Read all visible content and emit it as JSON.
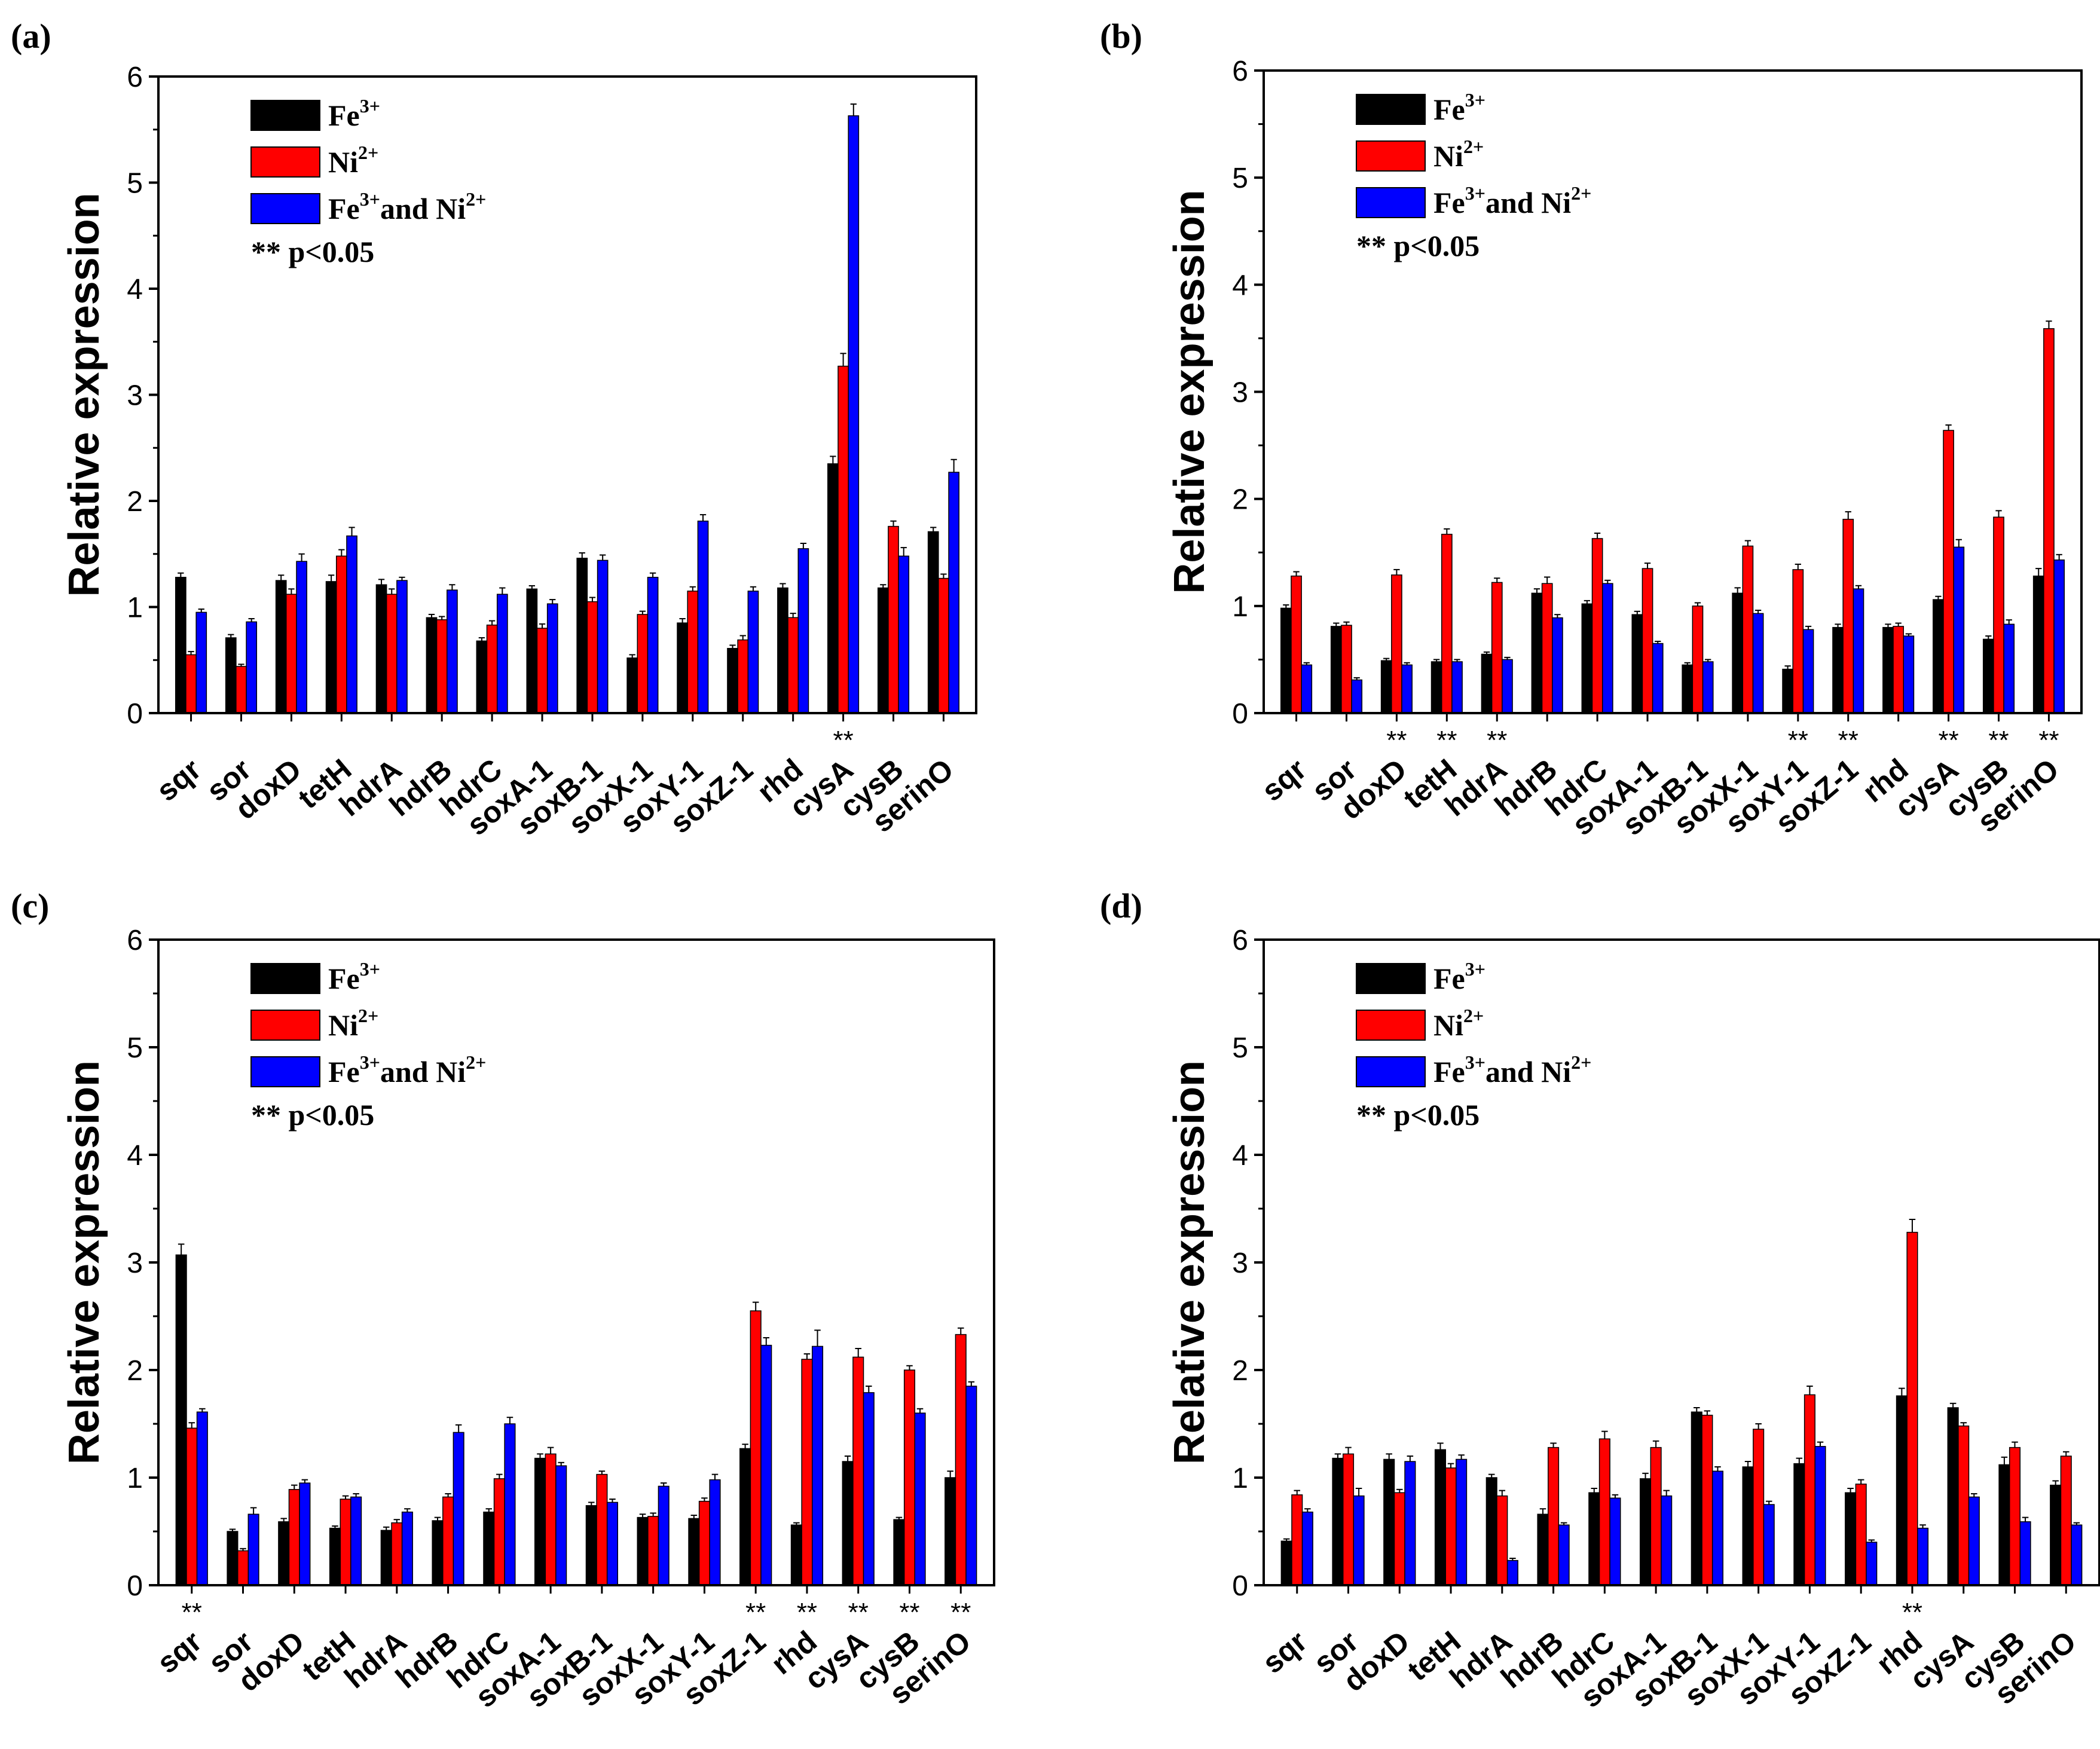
{
  "figure": {
    "y_axis_label": "Relative expression",
    "colors": {
      "fe": "#000000",
      "ni": "#ff0000",
      "both": "#0000ff"
    }
  },
  "chart_data": [
    {
      "panel_label": "(a)",
      "type": "bar",
      "ylabel": "Relative expression",
      "ylim": [
        0,
        6
      ],
      "yticks": [
        "0",
        "1",
        "2",
        "3",
        "4",
        "5",
        "6"
      ],
      "categories": [
        "sqr",
        "sor",
        "doxD",
        "tetH",
        "hdrA",
        "hdrB",
        "hdrC",
        "soxA-1",
        "soxB-1",
        "soxX-1",
        "soxY-1",
        "soxZ-1",
        "rhd",
        "cysA",
        "cysB",
        "serinO"
      ],
      "series": [
        {
          "name": "Fe3+",
          "values": [
            1.28,
            0.71,
            1.25,
            1.24,
            1.21,
            0.9,
            0.68,
            1.17,
            1.46,
            0.52,
            0.85,
            0.61,
            1.18,
            2.35,
            1.18,
            1.71
          ]
        },
        {
          "name": "Ni2+",
          "values": [
            0.55,
            0.44,
            1.12,
            1.48,
            1.12,
            0.88,
            0.83,
            0.8,
            1.05,
            0.93,
            1.15,
            0.69,
            0.9,
            3.27,
            1.76,
            1.27
          ]
        },
        {
          "name": "Fe3+ and Ni2+",
          "values": [
            0.95,
            0.86,
            1.43,
            1.67,
            1.25,
            1.16,
            1.12,
            1.03,
            1.44,
            1.28,
            1.81,
            1.15,
            1.55,
            5.63,
            1.48,
            2.27
          ]
        }
      ],
      "errors": [
        [
          0.04,
          0.03,
          0.05,
          0.06,
          0.05,
          0.03,
          0.03,
          0.03,
          0.05,
          0.03,
          0.04,
          0.03,
          0.04,
          0.07,
          0.03,
          0.04
        ],
        [
          0.03,
          0.02,
          0.05,
          0.06,
          0.05,
          0.03,
          0.04,
          0.04,
          0.04,
          0.03,
          0.04,
          0.04,
          0.04,
          0.12,
          0.05,
          0.04
        ],
        [
          0.03,
          0.03,
          0.07,
          0.08,
          0.03,
          0.05,
          0.06,
          0.04,
          0.05,
          0.04,
          0.06,
          0.04,
          0.05,
          0.11,
          0.08,
          0.12
        ]
      ],
      "significance_marks": [
        {
          "category": "cysA",
          "text": "**"
        }
      ],
      "legend": {
        "placement": "top-left",
        "items": [
          {
            "base": "Fe",
            "sup": "3+",
            "mid": "",
            "base2": "",
            "sup2": ""
          },
          {
            "base": "Ni",
            "sup": "2+",
            "mid": "",
            "base2": "",
            "sup2": ""
          },
          {
            "base": "Fe",
            "sup": "3+",
            "mid": "and Ni",
            "base2": "",
            "sup2": "2+"
          }
        ],
        "note": "** p<0.05"
      }
    },
    {
      "panel_label": "(b)",
      "type": "bar",
      "ylabel": "Relative expression",
      "ylim": [
        0,
        6
      ],
      "yticks": [
        "0",
        "1",
        "2",
        "3",
        "4",
        "5",
        "6"
      ],
      "categories": [
        "sqr",
        "sor",
        "doxD",
        "tetH",
        "hdrA",
        "hdrB",
        "hdrC",
        "soxA-1",
        "soxB-1",
        "soxX-1",
        "soxY-1",
        "soxZ-1",
        "rhd",
        "cysA",
        "cysB",
        "serinO"
      ],
      "series": [
        {
          "name": "Fe3+",
          "values": [
            0.98,
            0.81,
            0.49,
            0.48,
            0.55,
            1.12,
            1.02,
            0.92,
            0.45,
            1.12,
            0.41,
            0.8,
            0.8,
            1.06,
            0.69,
            1.28
          ]
        },
        {
          "name": "Ni2+",
          "values": [
            1.28,
            0.82,
            1.29,
            1.67,
            1.22,
            1.21,
            1.63,
            1.35,
            1.0,
            1.56,
            1.34,
            1.81,
            0.81,
            2.64,
            1.83,
            3.59
          ]
        },
        {
          "name": "Fe3+ and Ni2+",
          "values": [
            0.45,
            0.31,
            0.45,
            0.48,
            0.5,
            0.89,
            1.21,
            0.65,
            0.48,
            0.93,
            0.78,
            1.16,
            0.72,
            1.55,
            0.83,
            1.43
          ]
        }
      ],
      "errors": [
        [
          0.03,
          0.03,
          0.02,
          0.02,
          0.02,
          0.04,
          0.03,
          0.03,
          0.02,
          0.05,
          0.03,
          0.03,
          0.03,
          0.03,
          0.03,
          0.07
        ],
        [
          0.04,
          0.03,
          0.05,
          0.05,
          0.04,
          0.06,
          0.05,
          0.05,
          0.03,
          0.05,
          0.05,
          0.07,
          0.03,
          0.05,
          0.06,
          0.07
        ],
        [
          0.02,
          0.02,
          0.02,
          0.02,
          0.02,
          0.03,
          0.03,
          0.02,
          0.02,
          0.03,
          0.03,
          0.03,
          0.02,
          0.07,
          0.04,
          0.05
        ]
      ],
      "significance_marks": [
        {
          "category": "doxD",
          "text": "**"
        },
        {
          "category": "tetH",
          "text": "**"
        },
        {
          "category": "hdrA",
          "text": "**"
        },
        {
          "category": "soxY-1",
          "text": "**"
        },
        {
          "category": "soxZ-1",
          "text": "**"
        },
        {
          "category": "cysA",
          "text": "**"
        },
        {
          "category": "cysB",
          "text": "**"
        },
        {
          "category": "serinO",
          "text": "**"
        }
      ],
      "legend": {
        "placement": "top-left",
        "items": [
          {
            "base": "Fe",
            "sup": "3+",
            "mid": "",
            "base2": "",
            "sup2": ""
          },
          {
            "base": "Ni",
            "sup": "2+",
            "mid": "",
            "base2": "",
            "sup2": ""
          },
          {
            "base": "Fe",
            "sup": "3+",
            "mid": "and Ni",
            "base2": "",
            "sup2": "2+"
          }
        ],
        "note": "** p<0.05"
      }
    },
    {
      "panel_label": "(c)",
      "type": "bar",
      "ylabel": "Relative expression",
      "ylim": [
        0,
        6
      ],
      "yticks": [
        "0",
        "1",
        "2",
        "3",
        "4",
        "5",
        "6"
      ],
      "categories": [
        "sqr",
        "sor",
        "doxD",
        "tetH",
        "hdrA",
        "hdrB",
        "hdrC",
        "soxA-1",
        "soxB-1",
        "soxX-1",
        "soxY-1",
        "soxZ-1",
        "rhd",
        "cysA",
        "cysB",
        "serinO"
      ],
      "series": [
        {
          "name": "Fe3+",
          "values": [
            3.07,
            0.5,
            0.59,
            0.53,
            0.51,
            0.6,
            0.68,
            1.18,
            0.74,
            0.63,
            0.62,
            1.27,
            0.56,
            1.15,
            0.61,
            1.0
          ]
        },
        {
          "name": "Ni2+",
          "values": [
            1.46,
            0.32,
            0.89,
            0.8,
            0.58,
            0.82,
            0.99,
            1.22,
            1.03,
            0.64,
            0.78,
            2.55,
            2.1,
            2.12,
            2.0,
            2.33
          ]
        },
        {
          "name": "Fe3+ and Ni2+",
          "values": [
            1.61,
            0.66,
            0.95,
            0.82,
            0.68,
            1.42,
            1.5,
            1.11,
            0.77,
            0.92,
            0.98,
            2.23,
            2.22,
            1.79,
            1.6,
            1.85
          ]
        }
      ],
      "errors": [
        [
          0.1,
          0.02,
          0.03,
          0.02,
          0.03,
          0.03,
          0.03,
          0.04,
          0.03,
          0.03,
          0.03,
          0.04,
          0.02,
          0.05,
          0.02,
          0.06
        ],
        [
          0.05,
          0.02,
          0.04,
          0.03,
          0.03,
          0.03,
          0.04,
          0.06,
          0.03,
          0.03,
          0.03,
          0.08,
          0.05,
          0.08,
          0.04,
          0.06
        ],
        [
          0.03,
          0.06,
          0.03,
          0.03,
          0.03,
          0.07,
          0.06,
          0.03,
          0.03,
          0.03,
          0.05,
          0.07,
          0.15,
          0.06,
          0.04,
          0.04
        ]
      ],
      "significance_marks": [
        {
          "category": "sqr",
          "text": "**"
        },
        {
          "category": "soxZ-1",
          "text": "**"
        },
        {
          "category": "rhd",
          "text": "**"
        },
        {
          "category": "cysA",
          "text": "**"
        },
        {
          "category": "cysB",
          "text": "**"
        },
        {
          "category": "serinO",
          "text": "**"
        }
      ],
      "legend": {
        "placement": "top-left",
        "items": [
          {
            "base": "Fe",
            "sup": "3+",
            "mid": "",
            "base2": "",
            "sup2": ""
          },
          {
            "base": "Ni",
            "sup": "2+",
            "mid": "",
            "base2": "",
            "sup2": ""
          },
          {
            "base": "Fe",
            "sup": "3+",
            "mid": "and Ni",
            "base2": "",
            "sup2": "2+"
          }
        ],
        "note": "** p<0.05"
      }
    },
    {
      "panel_label": "(d)",
      "type": "bar",
      "ylabel": "Relative expression",
      "ylim": [
        0,
        6
      ],
      "yticks": [
        "0",
        "1",
        "2",
        "3",
        "4",
        "5",
        "6"
      ],
      "categories": [
        "sqr",
        "sor",
        "doxD",
        "tetH",
        "hdrA",
        "hdrB",
        "hdrC",
        "soxA-1",
        "soxB-1",
        "soxX-1",
        "soxY-1",
        "soxZ-1",
        "rhd",
        "cysA",
        "cysB",
        "serinO"
      ],
      "series": [
        {
          "name": "Fe3+",
          "values": [
            0.41,
            1.18,
            1.17,
            1.26,
            1.0,
            0.66,
            0.86,
            0.99,
            1.61,
            1.1,
            1.13,
            0.86,
            1.76,
            1.65,
            1.12,
            0.93
          ]
        },
        {
          "name": "Ni2+",
          "values": [
            0.84,
            1.22,
            0.86,
            1.09,
            0.83,
            1.28,
            1.36,
            1.28,
            1.58,
            1.45,
            1.77,
            0.94,
            3.28,
            1.48,
            1.28,
            1.2
          ]
        },
        {
          "name": "Fe3+ and Ni2+",
          "values": [
            0.68,
            0.83,
            1.15,
            1.17,
            0.23,
            0.56,
            0.81,
            0.83,
            1.06,
            0.75,
            1.29,
            0.4,
            0.53,
            0.82,
            0.59,
            0.56
          ]
        }
      ],
      "errors": [
        [
          0.02,
          0.04,
          0.05,
          0.06,
          0.03,
          0.05,
          0.04,
          0.05,
          0.04,
          0.05,
          0.05,
          0.04,
          0.07,
          0.04,
          0.07,
          0.04
        ],
        [
          0.04,
          0.06,
          0.03,
          0.04,
          0.05,
          0.04,
          0.07,
          0.06,
          0.04,
          0.05,
          0.08,
          0.04,
          0.12,
          0.03,
          0.05,
          0.04
        ],
        [
          0.03,
          0.07,
          0.05,
          0.04,
          0.02,
          0.02,
          0.03,
          0.05,
          0.04,
          0.03,
          0.04,
          0.02,
          0.03,
          0.03,
          0.04,
          0.02
        ]
      ],
      "significance_marks": [
        {
          "category": "rhd",
          "text": "**"
        }
      ],
      "legend": {
        "placement": "top-left",
        "items": [
          {
            "base": "Fe",
            "sup": "3+",
            "mid": "",
            "base2": "",
            "sup2": ""
          },
          {
            "base": "Ni",
            "sup": "2+",
            "mid": "",
            "base2": "",
            "sup2": ""
          },
          {
            "base": "Fe",
            "sup": "3+",
            "mid": "and Ni",
            "base2": "",
            "sup2": "2+"
          }
        ],
        "note": "** p<0.05"
      }
    }
  ]
}
